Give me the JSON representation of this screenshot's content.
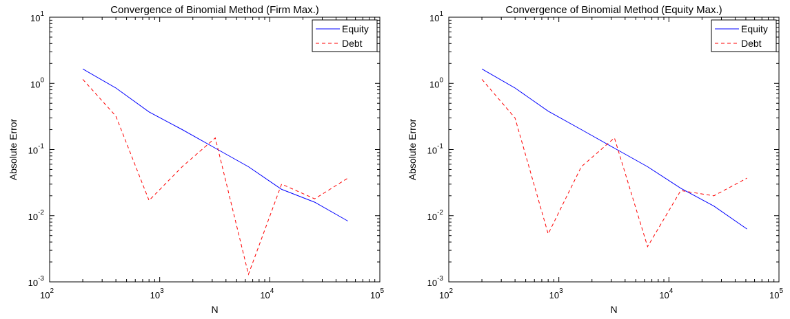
{
  "chart_data": [
    {
      "type": "line",
      "title": "Convergence of Binomial Method (Firm Max.)",
      "xlabel": "N",
      "ylabel": "Absolute Error",
      "xscale": "log",
      "yscale": "log",
      "xlim": [
        100,
        100000
      ],
      "ylim": [
        0.001,
        10
      ],
      "xticks": [
        {
          "base": "10",
          "exp": "2"
        },
        {
          "base": "10",
          "exp": "3"
        },
        {
          "base": "10",
          "exp": "4"
        },
        {
          "base": "10",
          "exp": "5"
        }
      ],
      "yticks": [
        {
          "base": "10",
          "exp": "-3"
        },
        {
          "base": "10",
          "exp": "-2"
        },
        {
          "base": "10",
          "exp": "-1"
        },
        {
          "base": "10",
          "exp": "0"
        },
        {
          "base": "10",
          "exp": "1"
        }
      ],
      "grid": false,
      "legend_position": "top-right",
      "x": [
        200,
        400,
        800,
        1600,
        3200,
        6400,
        12800,
        25600,
        51200
      ],
      "series": [
        {
          "name": "Equity",
          "color": "#0000ff",
          "style": "solid",
          "values": [
            1.65,
            0.85,
            0.37,
            0.2,
            0.105,
            0.055,
            0.025,
            0.016,
            0.0083
          ]
        },
        {
          "name": "Debt",
          "color": "#ff0000",
          "style": "dashed",
          "values": [
            1.15,
            0.32,
            0.017,
            0.055,
            0.15,
            0.0013,
            0.03,
            0.018,
            0.037
          ]
        }
      ]
    },
    {
      "type": "line",
      "title": "Convergence of Binomial Method (Equity Max.)",
      "xlabel": "N",
      "ylabel": "Absolute Error",
      "xscale": "log",
      "yscale": "log",
      "xlim": [
        100,
        100000
      ],
      "ylim": [
        0.001,
        10
      ],
      "xticks": [
        {
          "base": "10",
          "exp": "2"
        },
        {
          "base": "10",
          "exp": "3"
        },
        {
          "base": "10",
          "exp": "4"
        },
        {
          "base": "10",
          "exp": "5"
        }
      ],
      "yticks": [
        {
          "base": "10",
          "exp": "-3"
        },
        {
          "base": "10",
          "exp": "-2"
        },
        {
          "base": "10",
          "exp": "-1"
        },
        {
          "base": "10",
          "exp": "0"
        },
        {
          "base": "10",
          "exp": "1"
        }
      ],
      "grid": false,
      "legend_position": "top-right",
      "x": [
        200,
        400,
        800,
        1600,
        3200,
        6400,
        12800,
        25600,
        51200
      ],
      "series": [
        {
          "name": "Equity",
          "color": "#0000ff",
          "style": "solid",
          "values": [
            1.65,
            0.85,
            0.38,
            0.2,
            0.105,
            0.055,
            0.026,
            0.014,
            0.0063
          ]
        },
        {
          "name": "Debt",
          "color": "#ff0000",
          "style": "dashed",
          "values": [
            1.15,
            0.3,
            0.0053,
            0.055,
            0.15,
            0.0034,
            0.024,
            0.02,
            0.037
          ]
        }
      ]
    }
  ]
}
